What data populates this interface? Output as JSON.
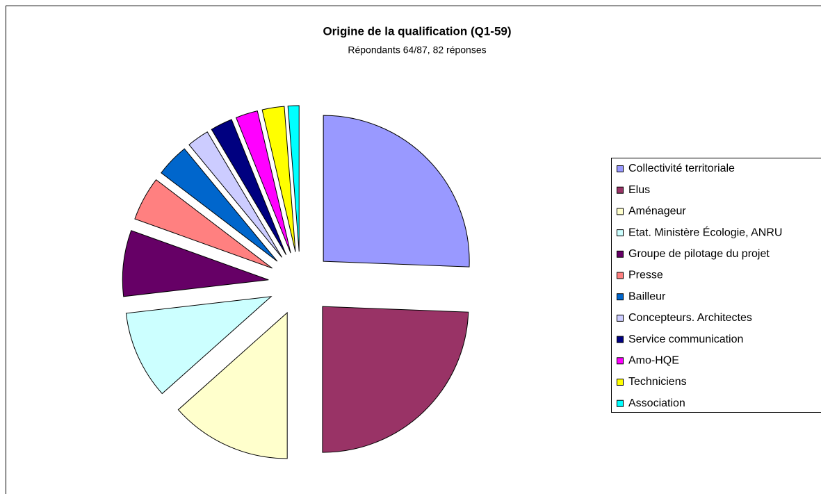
{
  "chart_data": {
    "type": "pie",
    "title": "Origine de la qualification (Q1-59)",
    "subtitle": "Répondants 64/87, 82 réponses",
    "categories": [
      "Collectivité territoriale",
      "Elus",
      "Aménageur",
      "Etat. Ministère Écologie, ANRU",
      "Groupe de pilotage du projet",
      "Presse",
      "Bailleur",
      "Concepteurs. Architectes",
      "Service communication",
      "Amo-HQE",
      "Techniciens",
      "Association"
    ],
    "values": [
      21,
      20,
      11,
      8,
      6,
      4,
      3,
      2,
      2,
      2,
      2,
      1
    ],
    "colors": [
      "#9999ff",
      "#993366",
      "#ffffcc",
      "#ccffff",
      "#660066",
      "#ff8080",
      "#0066cc",
      "#ccccff",
      "#000080",
      "#ff00ff",
      "#ffff00",
      "#00ffff"
    ],
    "exploded": true,
    "legend": "right"
  }
}
